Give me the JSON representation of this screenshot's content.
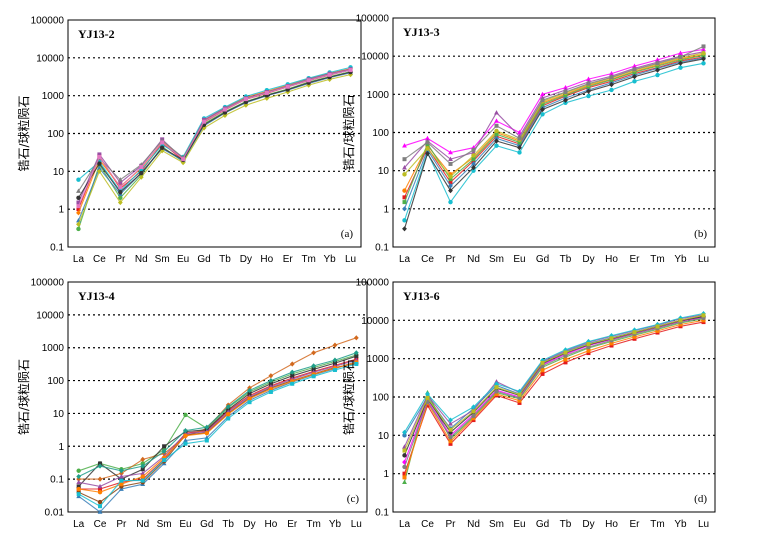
{
  "chart_data": [
    {
      "type": "line",
      "title": "YJ13-2",
      "panel_label": "(a)",
      "ylabel": "锆石/球粒陨石",
      "yscale": "log",
      "ylim": [
        0.1,
        100000
      ],
      "yticks": [
        "0.1",
        "1",
        "10",
        "100",
        "1000",
        "10000",
        "100000"
      ],
      "categories": [
        "La",
        "Ce",
        "Pr",
        "Nd",
        "Sm",
        "Eu",
        "Gd",
        "Tb",
        "Dy",
        "Ho",
        "Er",
        "Tm",
        "Yb",
        "Lu"
      ],
      "series": [
        {
          "name": "s1",
          "color": "#4daf4a",
          "values": [
            0.3,
            15,
            2.0,
            8,
            45,
            18,
            180,
            380,
            700,
            1050,
            1500,
            2300,
            3200,
            4300
          ]
        },
        {
          "name": "s2",
          "color": "#e41a1c",
          "values": [
            1.0,
            25,
            3.5,
            10,
            55,
            20,
            200,
            420,
            800,
            1150,
            1700,
            2500,
            3500,
            4800
          ]
        },
        {
          "name": "s3",
          "color": "#377eb8",
          "values": [
            0.5,
            12,
            2.5,
            9,
            40,
            19,
            160,
            350,
            650,
            1000,
            1400,
            2100,
            3000,
            4000
          ]
        },
        {
          "name": "s4",
          "color": "#ff7f00",
          "values": [
            0.8,
            20,
            4.0,
            12,
            60,
            22,
            220,
            480,
            900,
            1300,
            1900,
            2800,
            3900,
            5200
          ]
        },
        {
          "name": "s5",
          "color": "#17becf",
          "values": [
            6.0,
            18,
            3.0,
            11,
            50,
            24,
            250,
            500,
            950,
            1400,
            2000,
            2900,
            4100,
            5600
          ]
        },
        {
          "name": "s6",
          "color": "#984ea3",
          "values": [
            1.5,
            28,
            5.0,
            14,
            70,
            21,
            230,
            460,
            850,
            1250,
            1800,
            2700,
            3800,
            5000
          ]
        },
        {
          "name": "s7",
          "color": "#7f7f7f",
          "values": [
            3.0,
            22,
            6.0,
            15,
            65,
            23,
            210,
            440,
            820,
            1200,
            1750,
            2600,
            3600,
            4700
          ]
        },
        {
          "name": "s8",
          "color": "#bcbd22",
          "values": [
            0.4,
            10,
            1.5,
            7,
            35,
            17,
            140,
            300,
            560,
            850,
            1250,
            1900,
            2700,
            3600
          ]
        },
        {
          "name": "s9",
          "color": "#333333",
          "values": [
            2.0,
            16,
            2.8,
            9,
            42,
            20,
            170,
            360,
            680,
            1020,
            1450,
            2200,
            3100,
            4200
          ]
        },
        {
          "name": "s10",
          "color": "#e377c2",
          "values": [
            1.2,
            24,
            3.8,
            13,
            58,
            21,
            205,
            430,
            810,
            1180,
            1720,
            2550,
            3550,
            4750
          ]
        }
      ]
    },
    {
      "type": "line",
      "title": "YJ13-3",
      "panel_label": "(b)",
      "ylabel": "锆石/球粒陨石",
      "yscale": "log",
      "ylim": [
        0.1,
        100000
      ],
      "yticks": [
        "0.1",
        "1",
        "10",
        "100",
        "1000",
        "10000",
        "100000"
      ],
      "categories": [
        "La",
        "Ce",
        "Pr",
        "Nd",
        "Sm",
        "Eu",
        "Gd",
        "Tb",
        "Dy",
        "Ho",
        "Er",
        "Tm",
        "Yb",
        "Lu"
      ],
      "series": [
        {
          "name": "s1",
          "color": "#17becf",
          "values": [
            0.5,
            30,
            1.5,
            10,
            45,
            30,
            300,
            600,
            900,
            1300,
            2200,
            3200,
            5000,
            6500
          ]
        },
        {
          "name": "s2",
          "color": "#e41a1c",
          "values": [
            2.0,
            40,
            5.0,
            18,
            80,
            50,
            500,
            900,
            1500,
            2200,
            3500,
            5000,
            7500,
            9500
          ]
        },
        {
          "name": "s3",
          "color": "#ff00ff",
          "values": [
            45,
            70,
            30,
            40,
            200,
            100,
            1000,
            1500,
            2500,
            3500,
            5500,
            8000,
            12000,
            15000
          ]
        },
        {
          "name": "s4",
          "color": "#377eb8",
          "values": [
            1.0,
            35,
            4.0,
            15,
            70,
            45,
            450,
            800,
            1300,
            2000,
            3200,
            4800,
            7000,
            9000
          ]
        },
        {
          "name": "s5",
          "color": "#ff7f00",
          "values": [
            3.0,
            45,
            8.0,
            22,
            100,
            60,
            600,
            1000,
            1700,
            2500,
            4000,
            5800,
            8500,
            11000
          ]
        },
        {
          "name": "s6",
          "color": "#4daf4a",
          "values": [
            1.5,
            50,
            6.0,
            20,
            90,
            55,
            550,
            950,
            1600,
            2400,
            3800,
            5500,
            8000,
            10500
          ]
        },
        {
          "name": "s7",
          "color": "#984ea3",
          "values": [
            12,
            60,
            20,
            30,
            330,
            80,
            800,
            1300,
            2100,
            3000,
            4800,
            7000,
            10000,
            13000
          ]
        },
        {
          "name": "s8",
          "color": "#333333",
          "values": [
            0.3,
            28,
            3.0,
            12,
            60,
            40,
            400,
            700,
            1200,
            1800,
            2900,
            4300,
            6500,
            8500
          ]
        },
        {
          "name": "s9",
          "color": "#bcbd22",
          "values": [
            8.0,
            38,
            7.0,
            25,
            110,
            65,
            650,
            1100,
            1800,
            2700,
            4300,
            6200,
            9000,
            12000
          ]
        },
        {
          "name": "s10",
          "color": "#7f7f7f",
          "values": [
            20,
            55,
            15,
            35,
            150,
            70,
            700,
            1150,
            1900,
            2800,
            4500,
            6500,
            9500,
            18000
          ]
        }
      ]
    },
    {
      "type": "line",
      "title": "YJ13-4",
      "panel_label": "(c)",
      "ylabel": "锆石/球粒陨石",
      "yscale": "log",
      "ylim": [
        0.01,
        100000
      ],
      "yticks": [
        "0.01",
        "0.1",
        "1",
        "10",
        "100",
        "1000",
        "10000",
        "100000"
      ],
      "categories": [
        "La",
        "Ce",
        "Pr",
        "Nd",
        "Sm",
        "Eu",
        "Gd",
        "Tb",
        "Dy",
        "Ho",
        "Er",
        "Tm",
        "Yb",
        "Lu"
      ],
      "series": [
        {
          "name": "s1",
          "color": "#4daf4a",
          "values": [
            0.18,
            0.3,
            0.2,
            0.3,
            0.8,
            9.0,
            3.5,
            15,
            45,
            90,
            160,
            250,
            380,
            600
          ]
        },
        {
          "name": "s2",
          "color": "#e41a1c",
          "values": [
            0.05,
            0.05,
            0.08,
            0.1,
            0.4,
            2.5,
            3.0,
            12,
            35,
            70,
            120,
            190,
            290,
            450
          ]
        },
        {
          "name": "s3",
          "color": "#377eb8",
          "values": [
            0.03,
            0.01,
            0.05,
            0.07,
            0.3,
            1.5,
            1.8,
            8,
            25,
            50,
            90,
            150,
            230,
            380
          ]
        },
        {
          "name": "s4",
          "color": "#d2691e",
          "values": [
            0.1,
            0.1,
            0.15,
            0.4,
            0.6,
            2.0,
            3.5,
            18,
            60,
            140,
            320,
            700,
            1200,
            2000
          ]
        },
        {
          "name": "s5",
          "color": "#8b4513",
          "values": [
            0.04,
            0.02,
            0.06,
            0.08,
            0.35,
            2.2,
            2.6,
            10,
            30,
            60,
            100,
            160,
            250,
            330
          ]
        },
        {
          "name": "s6",
          "color": "#333333",
          "values": [
            0.06,
            0.3,
            0.1,
            0.2,
            1.0,
            2.8,
            3.2,
            13,
            40,
            80,
            140,
            220,
            340,
            550
          ]
        },
        {
          "name": "s7",
          "color": "#984ea3",
          "values": [
            0.08,
            0.06,
            0.12,
            0.15,
            0.5,
            2.4,
            2.8,
            11,
            32,
            65,
            110,
            180,
            270,
            420
          ]
        },
        {
          "name": "s8",
          "color": "#1f9e89",
          "values": [
            0.12,
            0.25,
            0.18,
            0.25,
            0.7,
            3.0,
            3.8,
            16,
            50,
            100,
            180,
            280,
            420,
            700
          ]
        },
        {
          "name": "s9",
          "color": "#ff7f00",
          "values": [
            0.05,
            0.04,
            0.07,
            0.12,
            0.45,
            2.1,
            2.5,
            9.5,
            28,
            55,
            95,
            155,
            240,
            360
          ]
        },
        {
          "name": "s10",
          "color": "#17becf",
          "values": [
            0.035,
            0.015,
            0.09,
            0.09,
            0.38,
            1.2,
            1.5,
            7,
            22,
            45,
            80,
            135,
            210,
            320
          ]
        }
      ]
    },
    {
      "type": "line",
      "title": "YJ13-6",
      "panel_label": "(d)",
      "ylabel": "锆石/球粒陨石",
      "yscale": "log",
      "ylim": [
        0.1,
        100000
      ],
      "yticks": [
        "0.1",
        "1",
        "10",
        "100",
        "1000",
        "10000",
        "100000"
      ],
      "categories": [
        "La",
        "Ce",
        "Pr",
        "Nd",
        "Sm",
        "Eu",
        "Gd",
        "Tb",
        "Dy",
        "Ho",
        "Er",
        "Tm",
        "Yb",
        "Lu"
      ],
      "series": [
        {
          "name": "s1",
          "color": "#377eb8",
          "values": [
            10,
            100,
            15,
            50,
            200,
            120,
            800,
            1500,
            2500,
            3500,
            5000,
            7000,
            10000,
            13000
          ]
        },
        {
          "name": "s2",
          "color": "#e41a1c",
          "values": [
            1.0,
            60,
            6.0,
            25,
            110,
            70,
            400,
            800,
            1400,
            2200,
            3300,
            4800,
            7000,
            9000
          ]
        },
        {
          "name": "s3",
          "color": "#4daf4a",
          "values": [
            0.6,
            130,
            8.0,
            30,
            130,
            90,
            600,
            1100,
            1900,
            2800,
            4100,
            5800,
            8500,
            11000
          ]
        },
        {
          "name": "s4",
          "color": "#ff00ff",
          "values": [
            2.0,
            80,
            10,
            35,
            150,
            100,
            700,
            1300,
            2200,
            3200,
            4600,
            6500,
            9500,
            12000
          ]
        },
        {
          "name": "s5",
          "color": "#333333",
          "values": [
            3.0,
            90,
            12,
            40,
            170,
            110,
            750,
            1400,
            2300,
            3300,
            4800,
            6800,
            9800,
            12500
          ]
        },
        {
          "name": "s6",
          "color": "#ff7f00",
          "values": [
            0.8,
            70,
            7.0,
            28,
            120,
            80,
            500,
            950,
            1600,
            2500,
            3700,
            5300,
            7800,
            10000
          ]
        },
        {
          "name": "s7",
          "color": "#984ea3",
          "values": [
            5.0,
            110,
            20,
            45,
            250,
            130,
            850,
            1600,
            2700,
            3800,
            5400,
            7500,
            11000,
            14000
          ]
        },
        {
          "name": "s8",
          "color": "#17becf",
          "values": [
            12,
            120,
            25,
            55,
            220,
            140,
            900,
            1700,
            2800,
            4000,
            5600,
            7800,
            11500,
            15000
          ]
        },
        {
          "name": "s9",
          "color": "#7f7f7f",
          "values": [
            1.5,
            75,
            9.0,
            32,
            140,
            95,
            650,
            1200,
            2000,
            3000,
            4400,
            6200,
            9000,
            11500
          ]
        },
        {
          "name": "s10",
          "color": "#bcbd22",
          "values": [
            4.0,
            95,
            14,
            42,
            180,
            115,
            780,
            1450,
            2400,
            3400,
            4900,
            6900,
            10000,
            13500
          ]
        }
      ]
    }
  ]
}
